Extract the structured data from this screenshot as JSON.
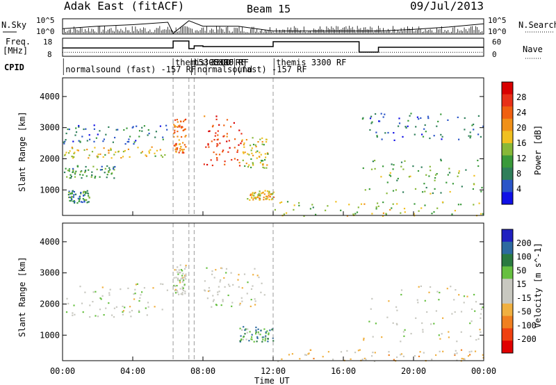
{
  "header": {
    "site": "Adak East (fitACF)",
    "beam": "Beam 15",
    "date": "09/Jul/2013"
  },
  "colors": {
    "frame": "#000000",
    "gap_line": "#999999"
  },
  "chart_data": [
    {
      "type": "line",
      "name": "noise",
      "left_label": "N.Sky",
      "right_label": "N.Search",
      "left_ticks": [
        "10^5",
        "10^0"
      ],
      "right_ticks": [
        "10^5",
        "10^0"
      ],
      "x": [
        0,
        2,
        4,
        6,
        6.3,
        7.2,
        8,
        10,
        12,
        14,
        16,
        18,
        20,
        22,
        24
      ],
      "values_log10": [
        0.6,
        0.9,
        1.1,
        1.4,
        0.0,
        1.6,
        0.9,
        0.9,
        0.3,
        0.3,
        0.3,
        0.3,
        0.5,
        0.8,
        1.2
      ]
    },
    {
      "type": "line",
      "name": "freq_nave",
      "left_label_1": "Freq.",
      "left_label_2": "[MHz]",
      "right_label": "Nave",
      "left_ticks": [
        "18",
        "8"
      ],
      "right_ticks": [
        "60",
        "0"
      ],
      "freq_steps": [
        {
          "t0": 0.0,
          "t1": 6.3,
          "f": 11.5
        },
        {
          "t0": 6.3,
          "t1": 7.2,
          "f": 16.5
        },
        {
          "t0": 7.2,
          "t1": 7.5,
          "f": 11.0
        },
        {
          "t0": 7.5,
          "t1": 8.0,
          "f": 13.0
        },
        {
          "t0": 8.0,
          "t1": 12.0,
          "f": 12.5
        },
        {
          "t0": 12.0,
          "t1": 16.9,
          "f": 16.0
        },
        {
          "t0": 16.9,
          "t1": 18.0,
          "f": 8.5
        },
        {
          "t0": 18.0,
          "t1": 24.0,
          "f": 12.0
        }
      ],
      "nave_level": 12
    },
    {
      "type": "table",
      "name": "cpid",
      "label": "CPID",
      "entries": [
        {
          "t": 0.05,
          "row": 1,
          "text": "normalsound (fast) -157 RF"
        },
        {
          "t": 6.3,
          "row": 0,
          "text": "themis 3300 RF"
        },
        {
          "t": 7.35,
          "row": 0,
          "text": "t5300sRF"
        },
        {
          "t": 7.55,
          "row": 1,
          "text": "normalsound"
        },
        {
          "t": 8.2,
          "row": 0,
          "text": "-5300 RF"
        },
        {
          "t": 9.8,
          "row": 1,
          "text": "(fast) -157 RF"
        },
        {
          "t": 12.05,
          "row": 0,
          "text": "themis 3300 RF"
        }
      ]
    },
    {
      "type": "heatmap",
      "name": "power",
      "ylabel": "Slant Range [km]",
      "yticks": [
        "1000",
        "2000",
        "3000",
        "4000"
      ],
      "ylim": [
        180,
        4600
      ],
      "colorbar_label": "Power [dB]",
      "colorbar_ticks": [
        "4",
        "8",
        "12",
        "16",
        "20",
        "24",
        "28"
      ],
      "colorscale": [
        "#1010e6",
        "#2a55c8",
        "#2f7f5a",
        "#3a9a3a",
        "#88b838",
        "#f0c020",
        "#f09018",
        "#f06010",
        "#e83018",
        "#d80000"
      ],
      "regions": [
        {
          "t0": 0.0,
          "t1": 6.0,
          "r0": 2050,
          "r1": 2400,
          "v": 0.55
        },
        {
          "t0": 0.0,
          "t1": 6.0,
          "r0": 2500,
          "r1": 3100,
          "v": 0.2
        },
        {
          "t0": 0.0,
          "t1": 3.0,
          "r0": 1400,
          "r1": 1800,
          "v": 0.3
        },
        {
          "t0": 0.3,
          "t1": 1.5,
          "r0": 600,
          "r1": 1000,
          "v": 0.25
        },
        {
          "t0": 6.3,
          "t1": 7.0,
          "r0": 2200,
          "r1": 3300,
          "v": 0.75
        },
        {
          "t0": 8.0,
          "t1": 10.2,
          "r0": 1800,
          "r1": 3400,
          "v": 0.88
        },
        {
          "t0": 10.2,
          "t1": 11.7,
          "r0": 1700,
          "r1": 2700,
          "v": 0.5
        },
        {
          "t0": 10.5,
          "t1": 12.0,
          "r0": 700,
          "r1": 1000,
          "v": 0.6
        },
        {
          "t0": 12.0,
          "t1": 24.0,
          "r0": 180,
          "r1": 650,
          "v": 0.45
        },
        {
          "t0": 17.0,
          "t1": 24.0,
          "r0": 900,
          "r1": 2000,
          "v": 0.35
        },
        {
          "t0": 17.0,
          "t1": 24.0,
          "r0": 2600,
          "r1": 3500,
          "v": 0.15
        }
      ]
    },
    {
      "type": "heatmap",
      "name": "velocity",
      "ylabel": "Slant Range [km]",
      "yticks": [
        "1000",
        "2000",
        "3000",
        "4000"
      ],
      "ylim": [
        180,
        4600
      ],
      "colorbar_label": "Velocity [m s^-1]",
      "colorbar_ticks": [
        "200",
        "100",
        "50",
        "15",
        "-15",
        "-50",
        "-100",
        "-200"
      ],
      "colorscale": [
        "#2020c0",
        "#2d6aa0",
        "#2a7a40",
        "#66c040",
        "#c8c8c0",
        "#c8c8c0",
        "#f0b040",
        "#f08020",
        "#f04010",
        "#e00000"
      ],
      "regions": [
        {
          "t0": 0.0,
          "t1": 6.0,
          "r0": 1600,
          "r1": 2700,
          "v": 0.48
        },
        {
          "t0": 6.3,
          "t1": 7.0,
          "r0": 2300,
          "r1": 3300,
          "v": 0.48
        },
        {
          "t0": 8.0,
          "t1": 11.5,
          "r0": 1900,
          "r1": 3200,
          "v": 0.5
        },
        {
          "t0": 10.0,
          "t1": 12.0,
          "r0": 800,
          "r1": 1300,
          "v": 0.25
        },
        {
          "t0": 12.0,
          "t1": 24.0,
          "r0": 180,
          "r1": 550,
          "v": 0.62
        },
        {
          "t0": 17.0,
          "t1": 24.0,
          "r0": 800,
          "r1": 2600,
          "v": 0.5
        }
      ]
    }
  ],
  "xaxis": {
    "label": "Time UT",
    "ticks": [
      "00:00",
      "04:00",
      "08:00",
      "12:00",
      "16:00",
      "20:00",
      "00:00"
    ],
    "tick_hours": [
      0,
      4,
      8,
      12,
      16,
      20,
      24
    ],
    "gap_hours": [
      6.3,
      7.2,
      7.5,
      12.0
    ]
  }
}
